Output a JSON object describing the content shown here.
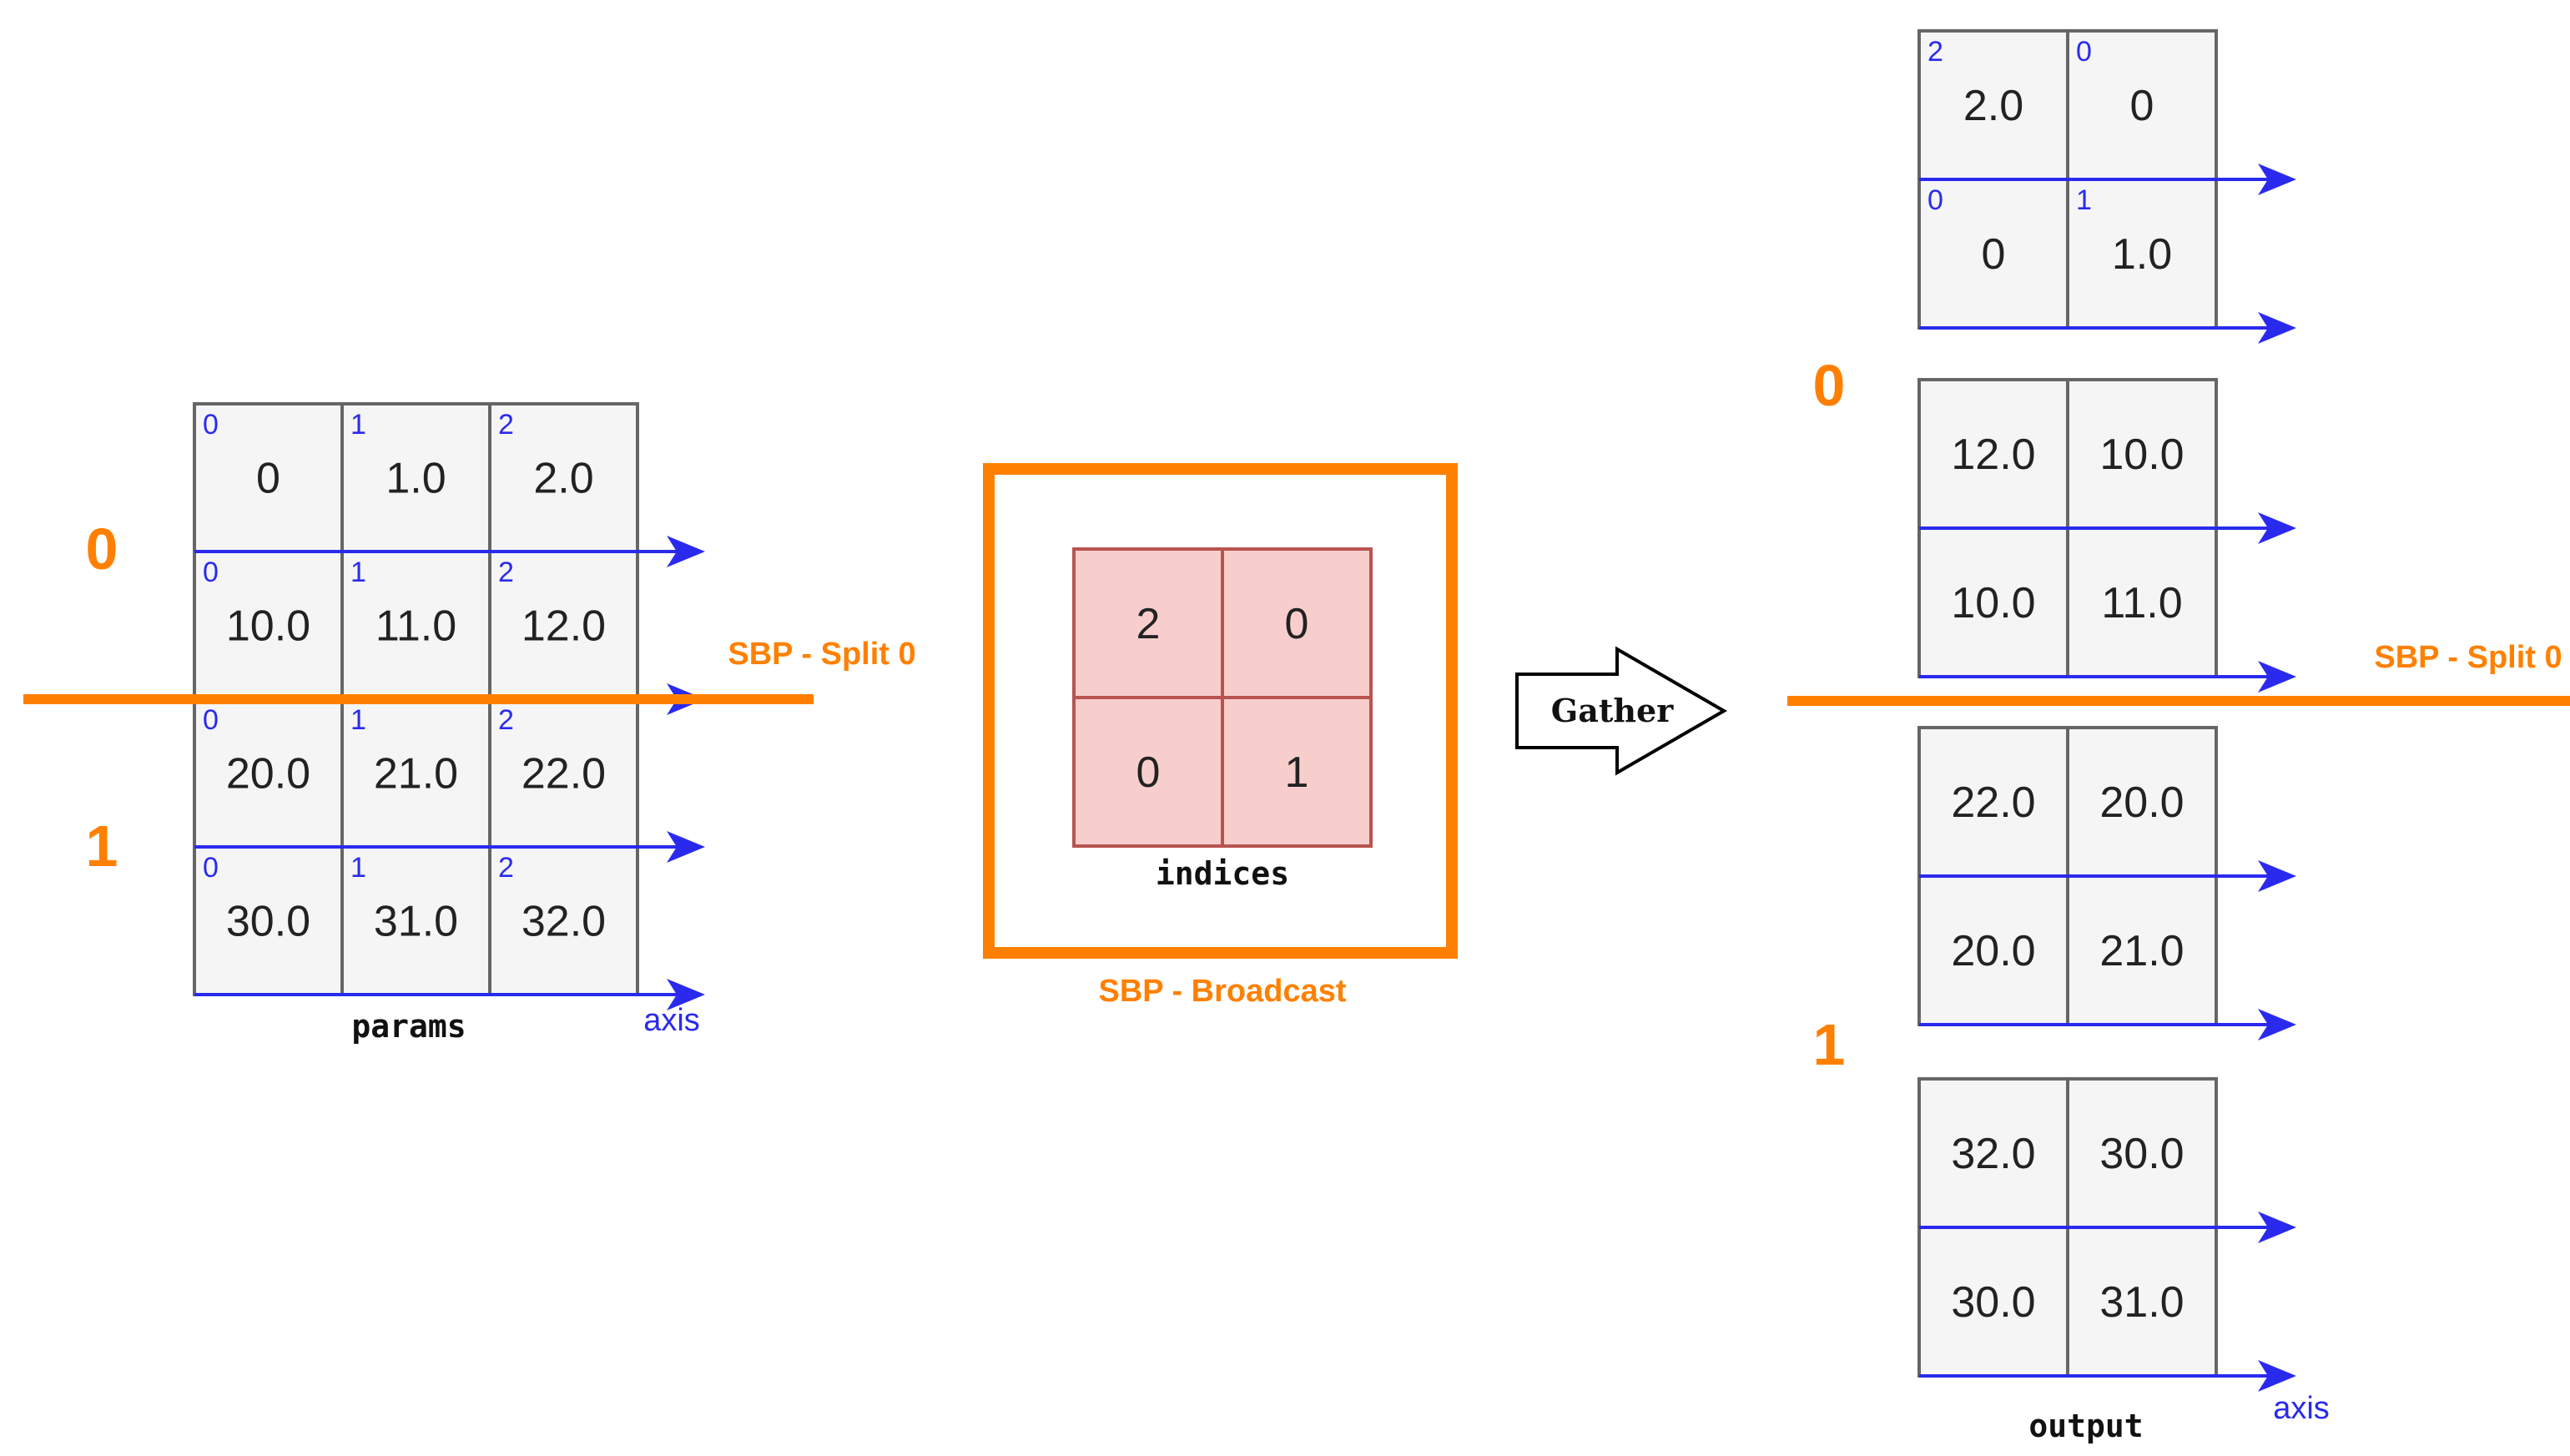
{
  "params": {
    "caption": "params",
    "rows": [
      [
        {
          "idx": "0",
          "val": "0"
        },
        {
          "idx": "1",
          "val": "1.0"
        },
        {
          "idx": "2",
          "val": "2.0"
        }
      ],
      [
        {
          "idx": "0",
          "val": "10.0"
        },
        {
          "idx": "1",
          "val": "11.0"
        },
        {
          "idx": "2",
          "val": "12.0"
        }
      ],
      [
        {
          "idx": "0",
          "val": "20.0"
        },
        {
          "idx": "1",
          "val": "21.0"
        },
        {
          "idx": "2",
          "val": "22.0"
        }
      ],
      [
        {
          "idx": "0",
          "val": "30.0"
        },
        {
          "idx": "1",
          "val": "31.0"
        },
        {
          "idx": "2",
          "val": "32.0"
        }
      ]
    ],
    "axis_label": "axis",
    "split_label": "SBP - Split 0",
    "rank_labels": [
      "0",
      "1"
    ]
  },
  "indices": {
    "caption": "indices",
    "rows": [
      [
        "2",
        "0"
      ],
      [
        "0",
        "1"
      ]
    ],
    "broadcast_label": "SBP - Broadcast"
  },
  "gather": {
    "label": "Gather"
  },
  "output": {
    "caption": "output",
    "blocks": [
      [
        [
          {
            "idx": "2",
            "val": "2.0"
          },
          {
            "idx": "0",
            "val": "0"
          }
        ],
        [
          {
            "idx": "0",
            "val": "0"
          },
          {
            "idx": "1",
            "val": "1.0"
          }
        ]
      ],
      [
        [
          {
            "idx": "",
            "val": "12.0"
          },
          {
            "idx": "",
            "val": "10.0"
          }
        ],
        [
          {
            "idx": "",
            "val": "10.0"
          },
          {
            "idx": "",
            "val": "11.0"
          }
        ]
      ],
      [
        [
          {
            "idx": "",
            "val": "22.0"
          },
          {
            "idx": "",
            "val": "20.0"
          }
        ],
        [
          {
            "idx": "",
            "val": "20.0"
          },
          {
            "idx": "",
            "val": "21.0"
          }
        ]
      ],
      [
        [
          {
            "idx": "",
            "val": "32.0"
          },
          {
            "idx": "",
            "val": "30.0"
          }
        ],
        [
          {
            "idx": "",
            "val": "30.0"
          },
          {
            "idx": "",
            "val": "31.0"
          }
        ]
      ]
    ],
    "axis_label": "axis",
    "split_label": "SBP - Split 0",
    "rank_labels": [
      "0",
      "1"
    ]
  },
  "colors": {
    "cell_fill": "#f5f5f5",
    "cell_border": "#666666",
    "index_fill": "#f8cecc",
    "index_border": "#b85450",
    "axis_blue": "#2a2aee",
    "sbp_orange": "#ff8000"
  }
}
